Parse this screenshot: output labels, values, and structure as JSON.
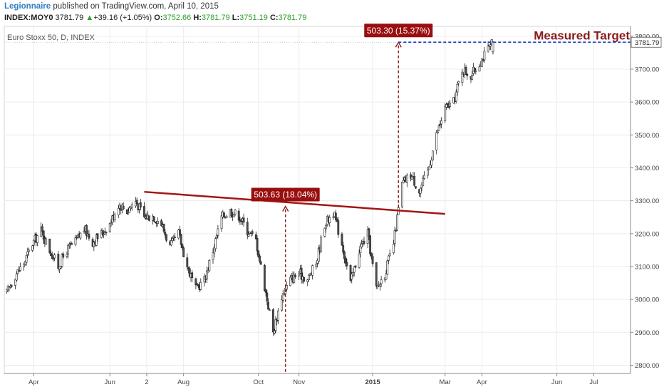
{
  "header": {
    "author": "Legionnaire",
    "published_text": "published on TradingView.com, April 10, 2015",
    "symbol": "INDEX:MOY0",
    "last": "3781.79",
    "change_arrow": "▲",
    "change": "+39.16 (+1.05%)",
    "open_label": "O:",
    "open": "3752.66",
    "high_label": "H:",
    "high": "3781.79",
    "low_label": "L:",
    "low": "3751.19",
    "close_label": "C:",
    "close": "3781.79"
  },
  "chart_data": {
    "type": "candlestick",
    "title": "Euro Stoxx 50, D, INDEX",
    "ylim": [
      2775,
      3830
    ],
    "y_ticks": [
      "2800.00",
      "2900.00",
      "3000.00",
      "3100.00",
      "3200.00",
      "3300.00",
      "3400.00",
      "3500.00",
      "3600.00",
      "3700.00",
      "3800.00"
    ],
    "y_tick_values": [
      2800,
      2900,
      3000,
      3100,
      3200,
      3300,
      3400,
      3500,
      3600,
      3700,
      3800
    ],
    "x_ticks": [
      {
        "label": "Apr",
        "date": "2014-04-01"
      },
      {
        "label": "Jun",
        "date": "2014-06-02"
      },
      {
        "label": "2",
        "date": "2014-07-02"
      },
      {
        "label": "Aug",
        "date": "2014-08-01"
      },
      {
        "label": "Oct",
        "date": "2014-10-01"
      },
      {
        "label": "Nov",
        "date": "2014-11-03"
      },
      {
        "label": "2015",
        "date": "2015-01-02"
      },
      {
        "label": "Mar",
        "date": "2015-03-02"
      },
      {
        "label": "Apr",
        "date": "2015-04-01"
      },
      {
        "label": "Jun",
        "date": "2015-06-01"
      },
      {
        "label": "Jul",
        "date": "2015-07-01"
      }
    ],
    "x_range": [
      "2014-03-08",
      "2015-07-31"
    ],
    "last_price_label": "3781.79",
    "last_price": 3781.79,
    "closes": [
      {
        "date": "2014-03-10",
        "c": 3020
      },
      {
        "date": "2014-03-17",
        "c": 3075
      },
      {
        "date": "2014-03-24",
        "c": 3110
      },
      {
        "date": "2014-03-31",
        "c": 3170
      },
      {
        "date": "2014-04-07",
        "c": 3210
      },
      {
        "date": "2014-04-14",
        "c": 3150
      },
      {
        "date": "2014-04-21",
        "c": 3100
      },
      {
        "date": "2014-04-28",
        "c": 3150
      },
      {
        "date": "2014-05-05",
        "c": 3175
      },
      {
        "date": "2014-05-12",
        "c": 3215
      },
      {
        "date": "2014-05-19",
        "c": 3175
      },
      {
        "date": "2014-05-26",
        "c": 3200
      },
      {
        "date": "2014-06-02",
        "c": 3230
      },
      {
        "date": "2014-06-09",
        "c": 3290
      },
      {
        "date": "2014-06-16",
        "c": 3270
      },
      {
        "date": "2014-06-23",
        "c": 3300
      },
      {
        "date": "2014-06-30",
        "c": 3250
      },
      {
        "date": "2014-07-07",
        "c": 3255
      },
      {
        "date": "2014-07-14",
        "c": 3230
      },
      {
        "date": "2014-07-21",
        "c": 3160
      },
      {
        "date": "2014-07-28",
        "c": 3200
      },
      {
        "date": "2014-08-04",
        "c": 3100
      },
      {
        "date": "2014-08-11",
        "c": 3030
      },
      {
        "date": "2014-08-18",
        "c": 3060
      },
      {
        "date": "2014-08-25",
        "c": 3150
      },
      {
        "date": "2014-09-01",
        "c": 3250
      },
      {
        "date": "2014-09-08",
        "c": 3270
      },
      {
        "date": "2014-09-15",
        "c": 3255
      },
      {
        "date": "2014-09-22",
        "c": 3210
      },
      {
        "date": "2014-09-29",
        "c": 3180
      },
      {
        "date": "2014-10-06",
        "c": 3040
      },
      {
        "date": "2014-10-13",
        "c": 2900
      },
      {
        "date": "2014-10-20",
        "c": 3010
      },
      {
        "date": "2014-10-27",
        "c": 3060
      },
      {
        "date": "2014-11-03",
        "c": 3080
      },
      {
        "date": "2014-11-10",
        "c": 3060
      },
      {
        "date": "2014-11-17",
        "c": 3110
      },
      {
        "date": "2014-11-24",
        "c": 3230
      },
      {
        "date": "2014-12-01",
        "c": 3265
      },
      {
        "date": "2014-12-08",
        "c": 3170
      },
      {
        "date": "2014-12-15",
        "c": 3050
      },
      {
        "date": "2014-12-22",
        "c": 3150
      },
      {
        "date": "2014-12-29",
        "c": 3200
      },
      {
        "date": "2015-01-05",
        "c": 3030
      },
      {
        "date": "2015-01-12",
        "c": 3080
      },
      {
        "date": "2015-01-19",
        "c": 3170
      },
      {
        "date": "2015-01-26",
        "c": 3350
      },
      {
        "date": "2015-02-02",
        "c": 3380
      },
      {
        "date": "2015-02-09",
        "c": 3330
      },
      {
        "date": "2015-02-16",
        "c": 3390
      },
      {
        "date": "2015-02-23",
        "c": 3500
      },
      {
        "date": "2015-03-02",
        "c": 3580
      },
      {
        "date": "2015-03-09",
        "c": 3600
      },
      {
        "date": "2015-03-16",
        "c": 3700
      },
      {
        "date": "2015-03-23",
        "c": 3680
      },
      {
        "date": "2015-03-30",
        "c": 3720
      },
      {
        "date": "2015-04-06",
        "c": 3760
      },
      {
        "date": "2015-04-10",
        "c": 3781.79
      }
    ],
    "annotations": {
      "trendline": {
        "from": {
          "date": "2014-06-30",
          "price": 3327
        },
        "to": {
          "date": "2015-03-02",
          "price": 3260
        }
      },
      "measure_1": {
        "label": "503.63 (18.04%)",
        "date": "2014-10-23",
        "from_price": 2780,
        "to_price": 3283
      },
      "measure_2": {
        "label": "503.30 (15.37%)",
        "date": "2015-01-23",
        "from_price": 3278,
        "to_price": 3781.79
      },
      "target_line": {
        "label": "Measured Target",
        "price": 3781.79,
        "from_date": "2015-01-23"
      }
    },
    "colors": {
      "candle_fill": "#4d4d4d",
      "candle_border": "#222222",
      "trendline": "#a31515",
      "annotation_box": "#990e0e",
      "target_line": "#1f3fc8",
      "grid": "#ececec",
      "axis": "#888888"
    }
  }
}
